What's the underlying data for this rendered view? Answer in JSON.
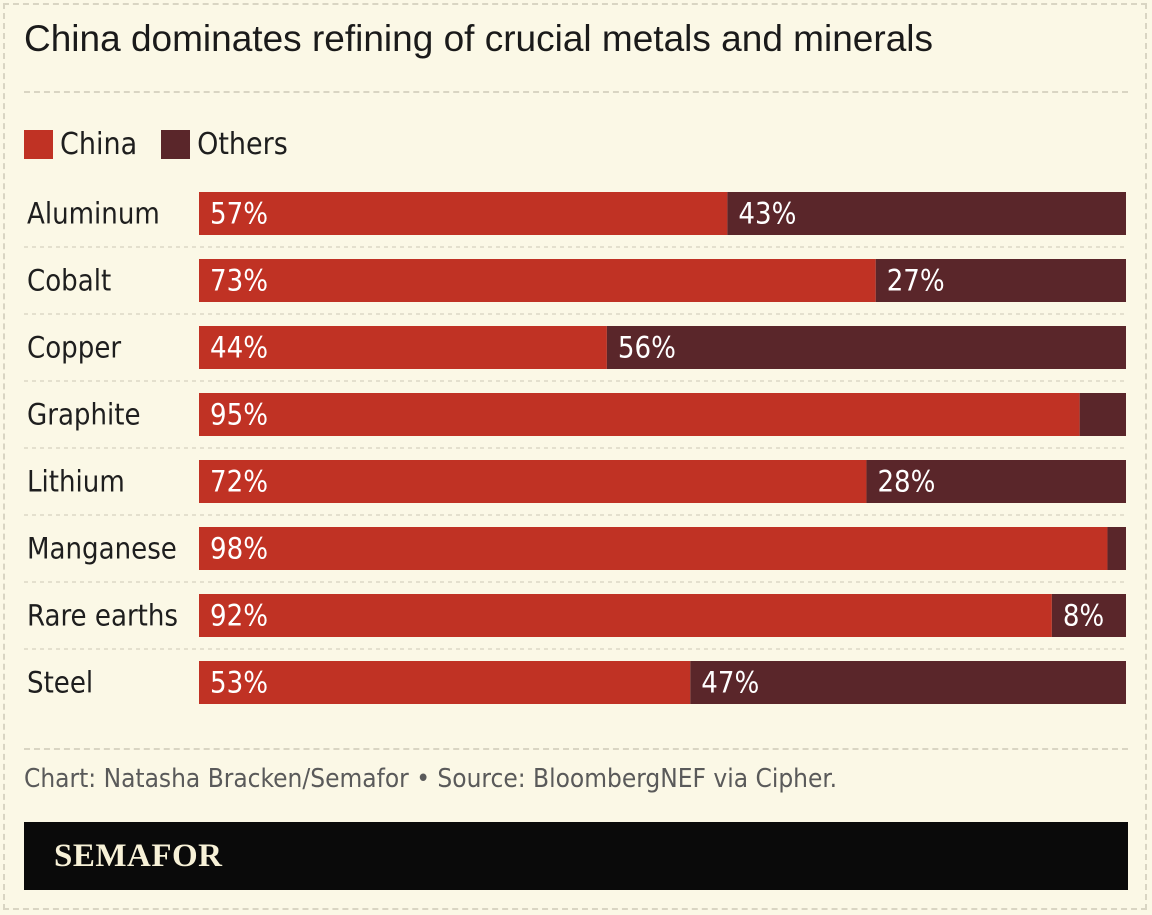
{
  "title": "China dominates refining of crucial metals and minerals",
  "legend": [
    {
      "label": "China",
      "color": "#c03224"
    },
    {
      "label": "Others",
      "color": "#5a262a"
    }
  ],
  "chart_data": {
    "type": "bar",
    "orientation": "horizontal",
    "stacked": true,
    "title": "China dominates refining of crucial metals and minerals",
    "categories": [
      "Aluminum",
      "Cobalt",
      "Copper",
      "Graphite",
      "Lithium",
      "Manganese",
      "Rare earths",
      "Steel"
    ],
    "series": [
      {
        "name": "China",
        "color": "#c03224",
        "values": [
          57,
          73,
          44,
          95,
          72,
          98,
          92,
          53
        ],
        "labels": [
          "57%",
          "73%",
          "44%",
          "95%",
          "72%",
          "98%",
          "92%",
          "53%"
        ]
      },
      {
        "name": "Others",
        "color": "#5a262a",
        "values": [
          43,
          27,
          56,
          5,
          28,
          2,
          8,
          47
        ],
        "labels": [
          "43%",
          "27%",
          "56%",
          "",
          "28%",
          "",
          "8%",
          "47%"
        ]
      }
    ],
    "xlim": [
      0,
      100
    ],
    "unit": "%"
  },
  "source": "Chart: Natasha Bracken/Semafor • Source: BloombergNEF via Cipher.",
  "brand": "SEMAFOR"
}
